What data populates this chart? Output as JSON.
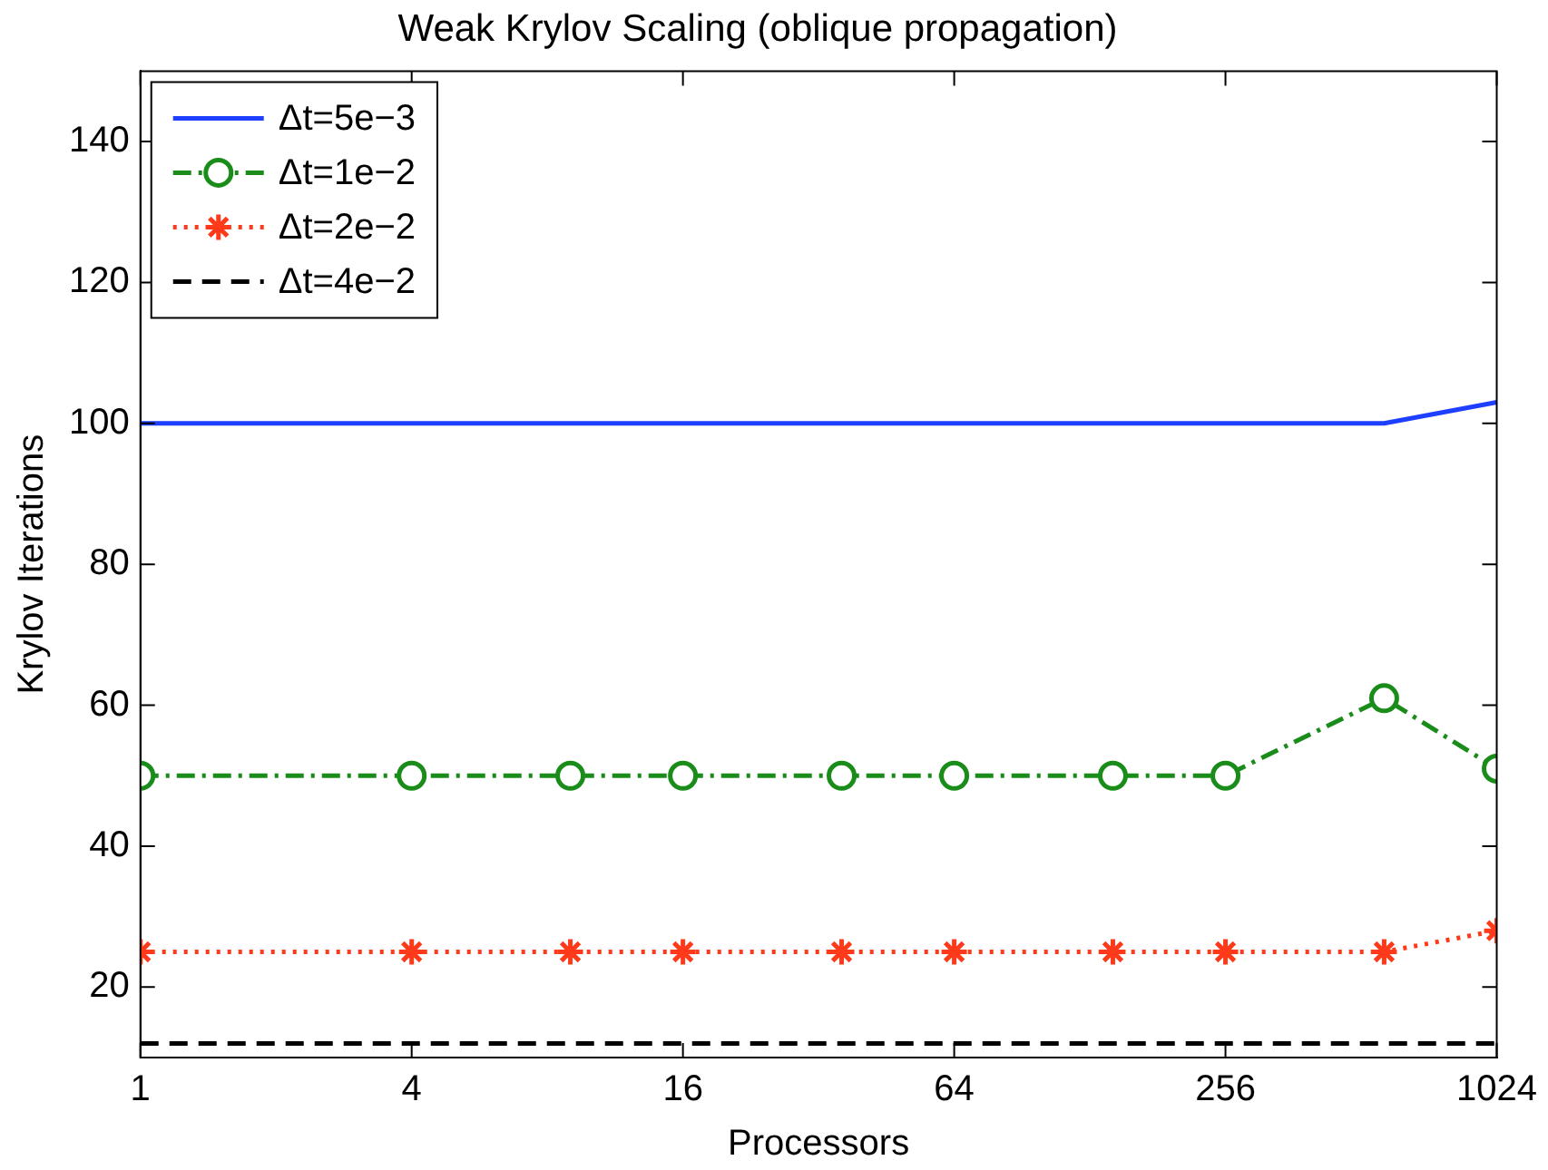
{
  "chart_data": {
    "type": "line",
    "title": "Weak Krylov Scaling (oblique propagation)",
    "xlabel": "Processors",
    "ylabel": "Krylov Iterations",
    "x": [
      1,
      4,
      9,
      16,
      36,
      64,
      144,
      256,
      576,
      1024
    ],
    "series": [
      {
        "name": "Δt=5e−3",
        "color": "#1f3fff",
        "values": [
          100,
          100,
          100,
          100,
          100,
          100,
          100,
          100,
          100,
          103
        ],
        "marker": "none",
        "line_style": "solid"
      },
      {
        "name": "Δt=1e−2",
        "color": "#1a8c1a",
        "values": [
          50,
          50,
          50,
          50,
          50,
          50,
          50,
          50,
          61,
          51
        ],
        "marker": "circle",
        "line_style": "dashdot"
      },
      {
        "name": "Δt=2e−2",
        "color": "#ff3a1a",
        "values": [
          25,
          25,
          25,
          25,
          25,
          25,
          25,
          25,
          25,
          28
        ],
        "marker": "cross",
        "line_style": "dotted"
      },
      {
        "name": "Δt=4e−2",
        "color": "#000000",
        "values": [
          12,
          12,
          12,
          12,
          12,
          12,
          12,
          12,
          12,
          12
        ],
        "marker": "none",
        "line_style": "dashed"
      }
    ],
    "log": "x",
    "xlim": [
      1,
      1024
    ],
    "xticks": [
      1,
      4,
      16,
      64,
      256,
      1024
    ],
    "ylim": [
      10,
      150
    ],
    "yticks": [
      20,
      40,
      60,
      80,
      100,
      120,
      140
    ],
    "grid": false,
    "legend": "top left"
  }
}
